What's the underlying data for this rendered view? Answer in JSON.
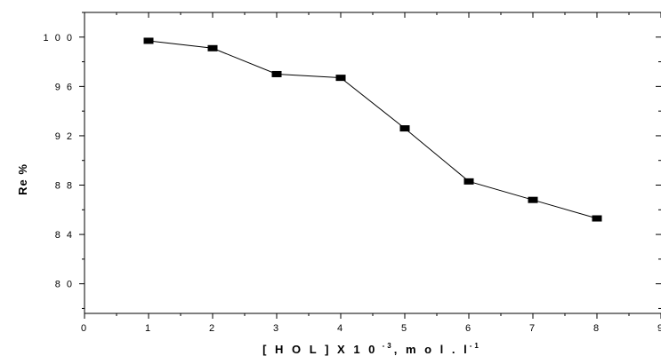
{
  "chart_data": {
    "type": "line",
    "marker": "square",
    "x": [
      1,
      2,
      3,
      4,
      5,
      6,
      7,
      8
    ],
    "y": [
      99.7,
      99.1,
      97.0,
      96.7,
      92.6,
      88.3,
      86.8,
      85.3
    ],
    "xlim": [
      0,
      9
    ],
    "ylim": [
      77.6,
      102
    ],
    "xticks": [
      "0",
      "1",
      "2",
      "3",
      "4",
      "5",
      "6",
      "7",
      "8",
      "9"
    ],
    "yticks": [
      {
        "value": 100,
        "label": "1 0 0"
      },
      {
        "value": 96,
        "label": "9 6"
      },
      {
        "value": 92,
        "label": "9 2"
      },
      {
        "value": 88,
        "label": "8 8"
      },
      {
        "value": 84,
        "label": "8 4"
      },
      {
        "value": 80,
        "label": "8 0"
      }
    ],
    "xlabel": {
      "base": "[ H O L ]  X  1 0",
      "exp1": " -3",
      "mid": ", m o l . l",
      "exp2": "-1"
    },
    "ylabel": "Re %",
    "line_color": "#000000",
    "marker_color": "#000000"
  }
}
